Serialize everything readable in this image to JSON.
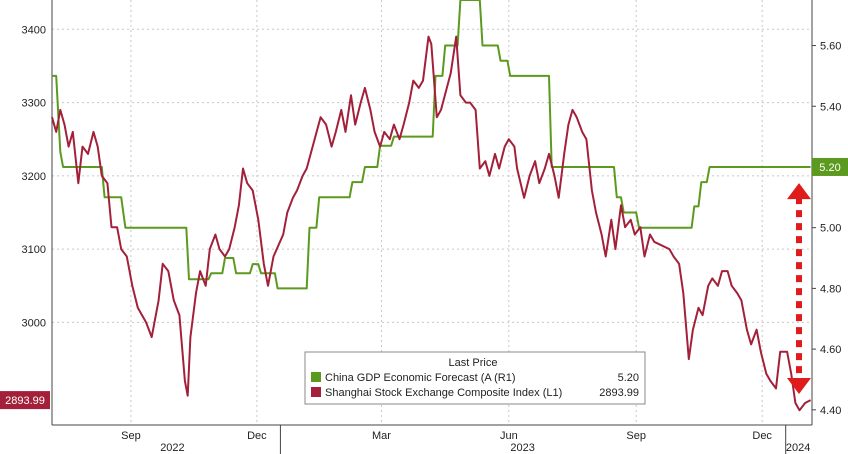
{
  "chart_data": {
    "type": "line",
    "title": "",
    "legend": {
      "heading": "Last Price",
      "placement": "bottom-center",
      "entries": [
        {
          "label": "China GDP Economic Forecast (A (R1)",
          "value": "5.20",
          "color": "#5b9a1e"
        },
        {
          "label": "Shanghai Stock Exchange Composite Index (L1)",
          "value": "2893.99",
          "color": "#a3203a"
        }
      ]
    },
    "x_axis": {
      "month_ticks": [
        "Sep",
        "Dec",
        "Mar",
        "Jun",
        "Sep",
        "Dec"
      ],
      "year_ticks": [
        "2022",
        "2023",
        "2024"
      ],
      "range": [
        "2022-07-20",
        "2024-01-20"
      ]
    },
    "y_left": {
      "range": [
        2860,
        3440
      ],
      "ticks": [
        "3000",
        "3100",
        "3200",
        "3300",
        "3400"
      ],
      "last_label": "2893.99"
    },
    "y_right": {
      "range": [
        4.35,
        5.75
      ],
      "ticks": [
        "4.40",
        "4.60",
        "4.80",
        "5.00",
        "5.20",
        "5.40",
        "5.60"
      ],
      "last_label": "5.20"
    },
    "grid": true,
    "annotation": "red dashed double-headed arrow on right side spanning from the index level up to the forecast level",
    "series": [
      {
        "name": "China GDP Economic Forecast (A (R1)",
        "axis": "right",
        "color": "#5b9a1e",
        "step": true,
        "points": [
          [
            "2022-07-20",
            5.5
          ],
          [
            "2022-07-23",
            5.5
          ],
          [
            "2022-07-26",
            5.25
          ],
          [
            "2022-07-28",
            5.2
          ],
          [
            "2022-08-25",
            5.2
          ],
          [
            "2022-08-27",
            5.1
          ],
          [
            "2022-09-08",
            5.1
          ],
          [
            "2022-09-11",
            5.0
          ],
          [
            "2022-10-25",
            5.0
          ],
          [
            "2022-10-27",
            4.83
          ],
          [
            "2022-11-10",
            4.83
          ],
          [
            "2022-11-12",
            4.85
          ],
          [
            "2022-11-20",
            4.85
          ],
          [
            "2022-11-22",
            4.9
          ],
          [
            "2022-11-28",
            4.9
          ],
          [
            "2022-11-30",
            4.85
          ],
          [
            "2022-12-10",
            4.85
          ],
          [
            "2022-12-12",
            4.88
          ],
          [
            "2022-12-16",
            4.88
          ],
          [
            "2022-12-18",
            4.85
          ],
          [
            "2022-12-28",
            4.85
          ],
          [
            "2022-12-30",
            4.8
          ],
          [
            "2023-01-20",
            4.8
          ],
          [
            "2023-01-22",
            5.0
          ],
          [
            "2023-01-27",
            5.0
          ],
          [
            "2023-01-29",
            5.1
          ],
          [
            "2023-02-20",
            5.1
          ],
          [
            "2023-02-22",
            5.15
          ],
          [
            "2023-03-01",
            5.15
          ],
          [
            "2023-03-03",
            5.2
          ],
          [
            "2023-03-12",
            5.2
          ],
          [
            "2023-03-14",
            5.27
          ],
          [
            "2023-03-22",
            5.27
          ],
          [
            "2023-03-24",
            5.3
          ],
          [
            "2023-04-21",
            5.3
          ],
          [
            "2023-04-23",
            5.5
          ],
          [
            "2023-04-28",
            5.5
          ],
          [
            "2023-04-30",
            5.6
          ],
          [
            "2023-05-09",
            5.6
          ],
          [
            "2023-05-11",
            5.75
          ],
          [
            "2023-05-25",
            5.75
          ],
          [
            "2023-05-27",
            5.6
          ],
          [
            "2023-06-07",
            5.6
          ],
          [
            "2023-06-09",
            5.55
          ],
          [
            "2023-06-14",
            5.55
          ],
          [
            "2023-06-16",
            5.5
          ],
          [
            "2023-07-14",
            5.5
          ],
          [
            "2023-07-16",
            5.2
          ],
          [
            "2023-08-30",
            5.2
          ],
          [
            "2023-09-01",
            5.1
          ],
          [
            "2023-09-04",
            5.1
          ],
          [
            "2023-09-06",
            5.05
          ],
          [
            "2023-09-15",
            5.05
          ],
          [
            "2023-09-17",
            5.0
          ],
          [
            "2023-10-25",
            5.0
          ],
          [
            "2023-10-27",
            5.07
          ],
          [
            "2023-10-30",
            5.07
          ],
          [
            "2023-11-01",
            5.15
          ],
          [
            "2023-11-05",
            5.15
          ],
          [
            "2023-11-07",
            5.2
          ],
          [
            "2024-01-19",
            5.2
          ]
        ]
      },
      {
        "name": "Shanghai Stock Exchange Composite Index (L1)",
        "axis": "left",
        "color": "#a3203a",
        "step": false,
        "points": [
          [
            "2022-07-20",
            3280
          ],
          [
            "2022-07-23",
            3260
          ],
          [
            "2022-07-26",
            3290
          ],
          [
            "2022-07-29",
            3270
          ],
          [
            "2022-08-01",
            3240
          ],
          [
            "2022-08-04",
            3260
          ],
          [
            "2022-08-08",
            3190
          ],
          [
            "2022-08-11",
            3240
          ],
          [
            "2022-08-15",
            3230
          ],
          [
            "2022-08-19",
            3260
          ],
          [
            "2022-08-22",
            3240
          ],
          [
            "2022-08-25",
            3200
          ],
          [
            "2022-08-29",
            3190
          ],
          [
            "2022-09-01",
            3130
          ],
          [
            "2022-09-05",
            3130
          ],
          [
            "2022-09-08",
            3100
          ],
          [
            "2022-09-12",
            3090
          ],
          [
            "2022-09-16",
            3050
          ],
          [
            "2022-09-20",
            3020
          ],
          [
            "2022-09-26",
            3000
          ],
          [
            "2022-09-30",
            2980
          ],
          [
            "2022-10-05",
            3030
          ],
          [
            "2022-10-08",
            3080
          ],
          [
            "2022-10-12",
            3070
          ],
          [
            "2022-10-16",
            3030
          ],
          [
            "2022-10-20",
            3010
          ],
          [
            "2022-10-24",
            2920
          ],
          [
            "2022-10-26",
            2900
          ],
          [
            "2022-10-28",
            2980
          ],
          [
            "2022-11-01",
            3040
          ],
          [
            "2022-11-04",
            3070
          ],
          [
            "2022-11-08",
            3050
          ],
          [
            "2022-11-11",
            3100
          ],
          [
            "2022-11-15",
            3120
          ],
          [
            "2022-11-18",
            3100
          ],
          [
            "2022-11-22",
            3090
          ],
          [
            "2022-11-25",
            3100
          ],
          [
            "2022-11-29",
            3130
          ],
          [
            "2022-12-02",
            3160
          ],
          [
            "2022-12-05",
            3210
          ],
          [
            "2022-12-08",
            3190
          ],
          [
            "2022-12-12",
            3180
          ],
          [
            "2022-12-16",
            3140
          ],
          [
            "2022-12-20",
            3080
          ],
          [
            "2022-12-23",
            3050
          ],
          [
            "2022-12-27",
            3090
          ],
          [
            "2023-01-03",
            3120
          ],
          [
            "2023-01-06",
            3150
          ],
          [
            "2023-01-10",
            3170
          ],
          [
            "2023-01-13",
            3180
          ],
          [
            "2023-01-17",
            3200
          ],
          [
            "2023-01-20",
            3210
          ],
          [
            "2023-01-30",
            3280
          ],
          [
            "2023-02-03",
            3270
          ],
          [
            "2023-02-07",
            3240
          ],
          [
            "2023-02-10",
            3260
          ],
          [
            "2023-02-14",
            3290
          ],
          [
            "2023-02-17",
            3260
          ],
          [
            "2023-02-21",
            3310
          ],
          [
            "2023-02-24",
            3270
          ],
          [
            "2023-02-28",
            3300
          ],
          [
            "2023-03-03",
            3320
          ],
          [
            "2023-03-07",
            3290
          ],
          [
            "2023-03-10",
            3260
          ],
          [
            "2023-03-14",
            3240
          ],
          [
            "2023-03-17",
            3260
          ],
          [
            "2023-03-21",
            3250
          ],
          [
            "2023-03-24",
            3270
          ],
          [
            "2023-03-28",
            3250
          ],
          [
            "2023-03-31",
            3270
          ],
          [
            "2023-04-04",
            3300
          ],
          [
            "2023-04-07",
            3330
          ],
          [
            "2023-04-11",
            3320
          ],
          [
            "2023-04-14",
            3330
          ],
          [
            "2023-04-18",
            3390
          ],
          [
            "2023-04-20",
            3380
          ],
          [
            "2023-04-24",
            3280
          ],
          [
            "2023-04-27",
            3290
          ],
          [
            "2023-05-04",
            3340
          ],
          [
            "2023-05-08",
            3390
          ],
          [
            "2023-05-11",
            3310
          ],
          [
            "2023-05-15",
            3300
          ],
          [
            "2023-05-18",
            3300
          ],
          [
            "2023-05-22",
            3290
          ],
          [
            "2023-05-25",
            3210
          ],
          [
            "2023-05-29",
            3220
          ],
          [
            "2023-06-01",
            3200
          ],
          [
            "2023-06-05",
            3230
          ],
          [
            "2023-06-08",
            3210
          ],
          [
            "2023-06-12",
            3240
          ],
          [
            "2023-06-15",
            3250
          ],
          [
            "2023-06-19",
            3240
          ],
          [
            "2023-06-21",
            3210
          ],
          [
            "2023-06-26",
            3170
          ],
          [
            "2023-06-30",
            3200
          ],
          [
            "2023-07-04",
            3220
          ],
          [
            "2023-07-07",
            3190
          ],
          [
            "2023-07-11",
            3210
          ],
          [
            "2023-07-14",
            3230
          ],
          [
            "2023-07-18",
            3200
          ],
          [
            "2023-07-21",
            3170
          ],
          [
            "2023-07-25",
            3230
          ],
          [
            "2023-07-28",
            3270
          ],
          [
            "2023-07-31",
            3290
          ],
          [
            "2023-08-03",
            3280
          ],
          [
            "2023-08-07",
            3260
          ],
          [
            "2023-08-10",
            3250
          ],
          [
            "2023-08-14",
            3180
          ],
          [
            "2023-08-17",
            3150
          ],
          [
            "2023-08-21",
            3120
          ],
          [
            "2023-08-24",
            3090
          ],
          [
            "2023-08-28",
            3140
          ],
          [
            "2023-08-31",
            3100
          ],
          [
            "2023-09-04",
            3160
          ],
          [
            "2023-09-07",
            3130
          ],
          [
            "2023-09-11",
            3140
          ],
          [
            "2023-09-14",
            3120
          ],
          [
            "2023-09-18",
            3130
          ],
          [
            "2023-09-21",
            3090
          ],
          [
            "2023-09-25",
            3120
          ],
          [
            "2023-09-28",
            3110
          ],
          [
            "2023-10-09",
            3100
          ],
          [
            "2023-10-12",
            3090
          ],
          [
            "2023-10-16",
            3080
          ],
          [
            "2023-10-19",
            3040
          ],
          [
            "2023-10-23",
            2950
          ],
          [
            "2023-10-26",
            2990
          ],
          [
            "2023-10-30",
            3020
          ],
          [
            "2023-11-02",
            3010
          ],
          [
            "2023-11-06",
            3050
          ],
          [
            "2023-11-09",
            3060
          ],
          [
            "2023-11-13",
            3050
          ],
          [
            "2023-11-16",
            3070
          ],
          [
            "2023-11-20",
            3070
          ],
          [
            "2023-11-23",
            3050
          ],
          [
            "2023-11-27",
            3040
          ],
          [
            "2023-11-30",
            3030
          ],
          [
            "2023-12-04",
            2990
          ],
          [
            "2023-12-07",
            2970
          ],
          [
            "2023-12-11",
            2990
          ],
          [
            "2023-12-14",
            2960
          ],
          [
            "2023-12-18",
            2930
          ],
          [
            "2023-12-21",
            2920
          ],
          [
            "2023-12-25",
            2910
          ],
          [
            "2023-12-28",
            2960
          ],
          [
            "2024-01-02",
            2960
          ],
          [
            "2024-01-05",
            2930
          ],
          [
            "2024-01-08",
            2890
          ],
          [
            "2024-01-11",
            2880
          ],
          [
            "2024-01-15",
            2890
          ],
          [
            "2024-01-19",
            2893.99
          ]
        ]
      }
    ]
  }
}
